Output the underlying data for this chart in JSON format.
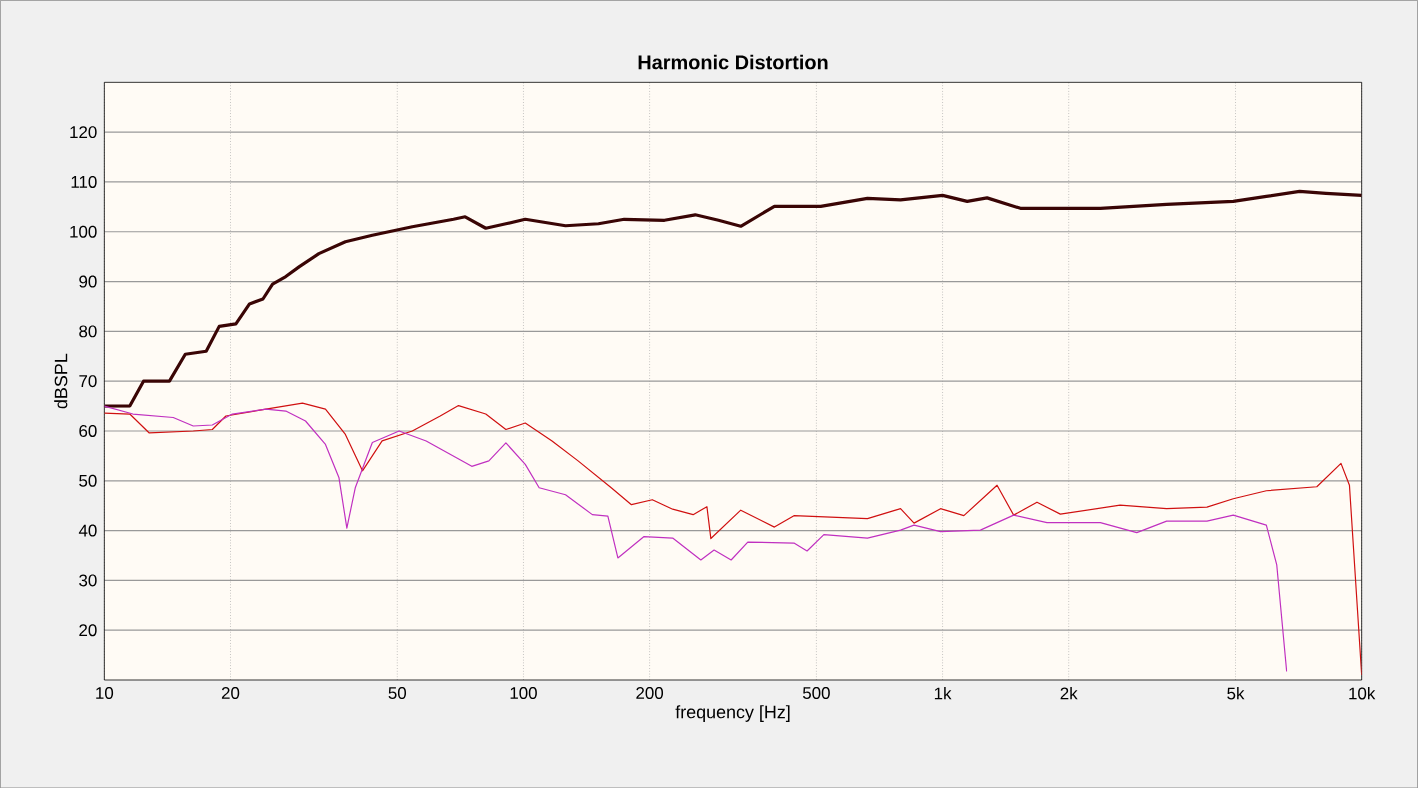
{
  "chart_data": {
    "type": "line",
    "title": "Harmonic Distortion",
    "xlabel": "frequency [Hz]",
    "ylabel": "dBSPL",
    "log": "x",
    "grid": true,
    "xlim": [
      10,
      10000
    ],
    "ylim": [
      10,
      130
    ],
    "xticks": [
      10,
      20,
      50,
      100,
      200,
      500,
      {
        "value": 1000,
        "label": "1k"
      },
      {
        "value": 2000,
        "label": "2k"
      },
      {
        "value": 5000,
        "label": "5k"
      },
      {
        "value": 10000,
        "label": "10k"
      }
    ],
    "yticks": [
      20,
      30,
      40,
      50,
      60,
      70,
      80,
      90,
      100,
      110,
      120
    ],
    "series": [
      {
        "color": "#3a0505",
        "x": [
          10,
          11.5,
          12.4,
          14.3,
          15.6,
          17.5,
          18.8,
          20.6,
          22.2,
          23.9,
          25.2,
          27.1,
          29.2,
          32.5,
          37.6,
          43.6,
          54.3,
          68.1,
          72.6,
          81.3,
          90.8,
          101,
          126,
          151,
          174,
          217,
          257,
          292,
          330,
          397,
          512,
          662,
          794,
          1000,
          1145,
          1277,
          1534,
          2380,
          3425,
          4939,
          5923,
          7111,
          8217,
          10000
        ],
        "values": [
          65,
          65,
          70,
          70,
          75.4,
          76,
          81,
          81.5,
          85.5,
          86.5,
          89.5,
          91,
          93,
          95.6,
          98,
          99.3,
          101,
          102.5,
          103,
          100.7,
          101.6,
          102.5,
          101.2,
          101.6,
          102.5,
          102.3,
          103.4,
          102.3,
          101.1,
          105.1,
          105.1,
          106.7,
          106.4,
          107.3,
          106.1,
          106.8,
          104.7,
          104.7,
          105.5,
          106.1,
          107.1,
          108.1,
          107.7,
          107.3
        ]
      },
      {
        "color": "#d01010",
        "x": [
          10,
          11.5,
          12.8,
          16.3,
          18.1,
          19.5,
          24.3,
          29.7,
          33.7,
          37.6,
          41.3,
          46,
          54.3,
          63.3,
          70,
          81.3,
          90.8,
          101,
          117,
          135,
          162,
          181,
          203,
          227,
          254,
          274,
          280,
          330,
          397,
          442,
          662,
          794,
          855,
          989,
          1124,
          1349,
          1478,
          1680,
          1910,
          2652,
          3425,
          4274,
          4939,
          5923,
          7818,
          8926,
          9350,
          10000
        ],
        "values": [
          63.6,
          63.4,
          59.6,
          60,
          60.3,
          63,
          64.4,
          65.6,
          64.4,
          59.3,
          52,
          58,
          60,
          63,
          65.1,
          63.4,
          60.3,
          61.6,
          58,
          54,
          48.6,
          45.2,
          46.2,
          44.3,
          43.2,
          44.8,
          38.4,
          44.1,
          40.7,
          43,
          42.4,
          44.4,
          41.5,
          44.4,
          43,
          49.1,
          43.1,
          45.7,
          43.3,
          45.1,
          44.4,
          44.7,
          46.4,
          48,
          48.8,
          53.5,
          49.1,
          11
        ]
      },
      {
        "color": "#c030c0",
        "x": [
          10,
          11.7,
          14.6,
          16.3,
          18.1,
          20.2,
          24.3,
          27.1,
          30.2,
          33.7,
          36.3,
          37.9,
          39.7,
          43.6,
          50.5,
          58.6,
          75.3,
          82.7,
          90.8,
          101,
          109,
          126,
          146,
          159,
          168,
          194,
          227,
          265,
          285,
          313,
          343,
          442,
          475,
          521,
          662,
          794,
          855,
          989,
          1231,
          1478,
          1775,
          2380,
          2907,
          3425,
          4274,
          4939,
          5923,
          6272,
          6623
        ],
        "values": [
          65,
          63.4,
          62.7,
          61,
          61.2,
          63.4,
          64.4,
          64,
          62,
          57.3,
          50.6,
          40.5,
          48.6,
          57.7,
          60,
          58,
          52.9,
          54,
          57.6,
          53.3,
          48.6,
          47.2,
          43.2,
          42.9,
          34.5,
          38.8,
          38.5,
          34.1,
          36.1,
          34.1,
          37.7,
          37.5,
          35.9,
          39.2,
          38.5,
          40.1,
          41.1,
          39.8,
          40.1,
          43.1,
          41.6,
          41.6,
          39.6,
          41.9,
          41.9,
          43.1,
          41.1,
          33.1,
          11.7
        ]
      }
    ]
  }
}
